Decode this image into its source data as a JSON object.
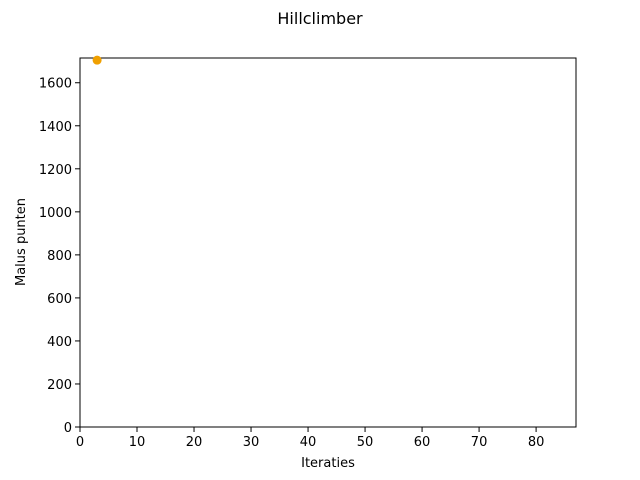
{
  "chart_data": {
    "type": "scatter",
    "title": "Hillclimber",
    "xlabel": "Iteraties",
    "ylabel": "Malus punten",
    "xlim": [
      0,
      87
    ],
    "ylim": [
      0,
      1715
    ],
    "x_ticks": [
      0,
      10,
      20,
      30,
      40,
      50,
      60,
      70,
      80
    ],
    "y_ticks": [
      0,
      200,
      400,
      600,
      800,
      1000,
      1200,
      1400,
      1600
    ],
    "grid": false,
    "series": [
      {
        "color": "#f0a000",
        "points": [
          {
            "x": 3,
            "y": 1705
          }
        ]
      }
    ]
  }
}
